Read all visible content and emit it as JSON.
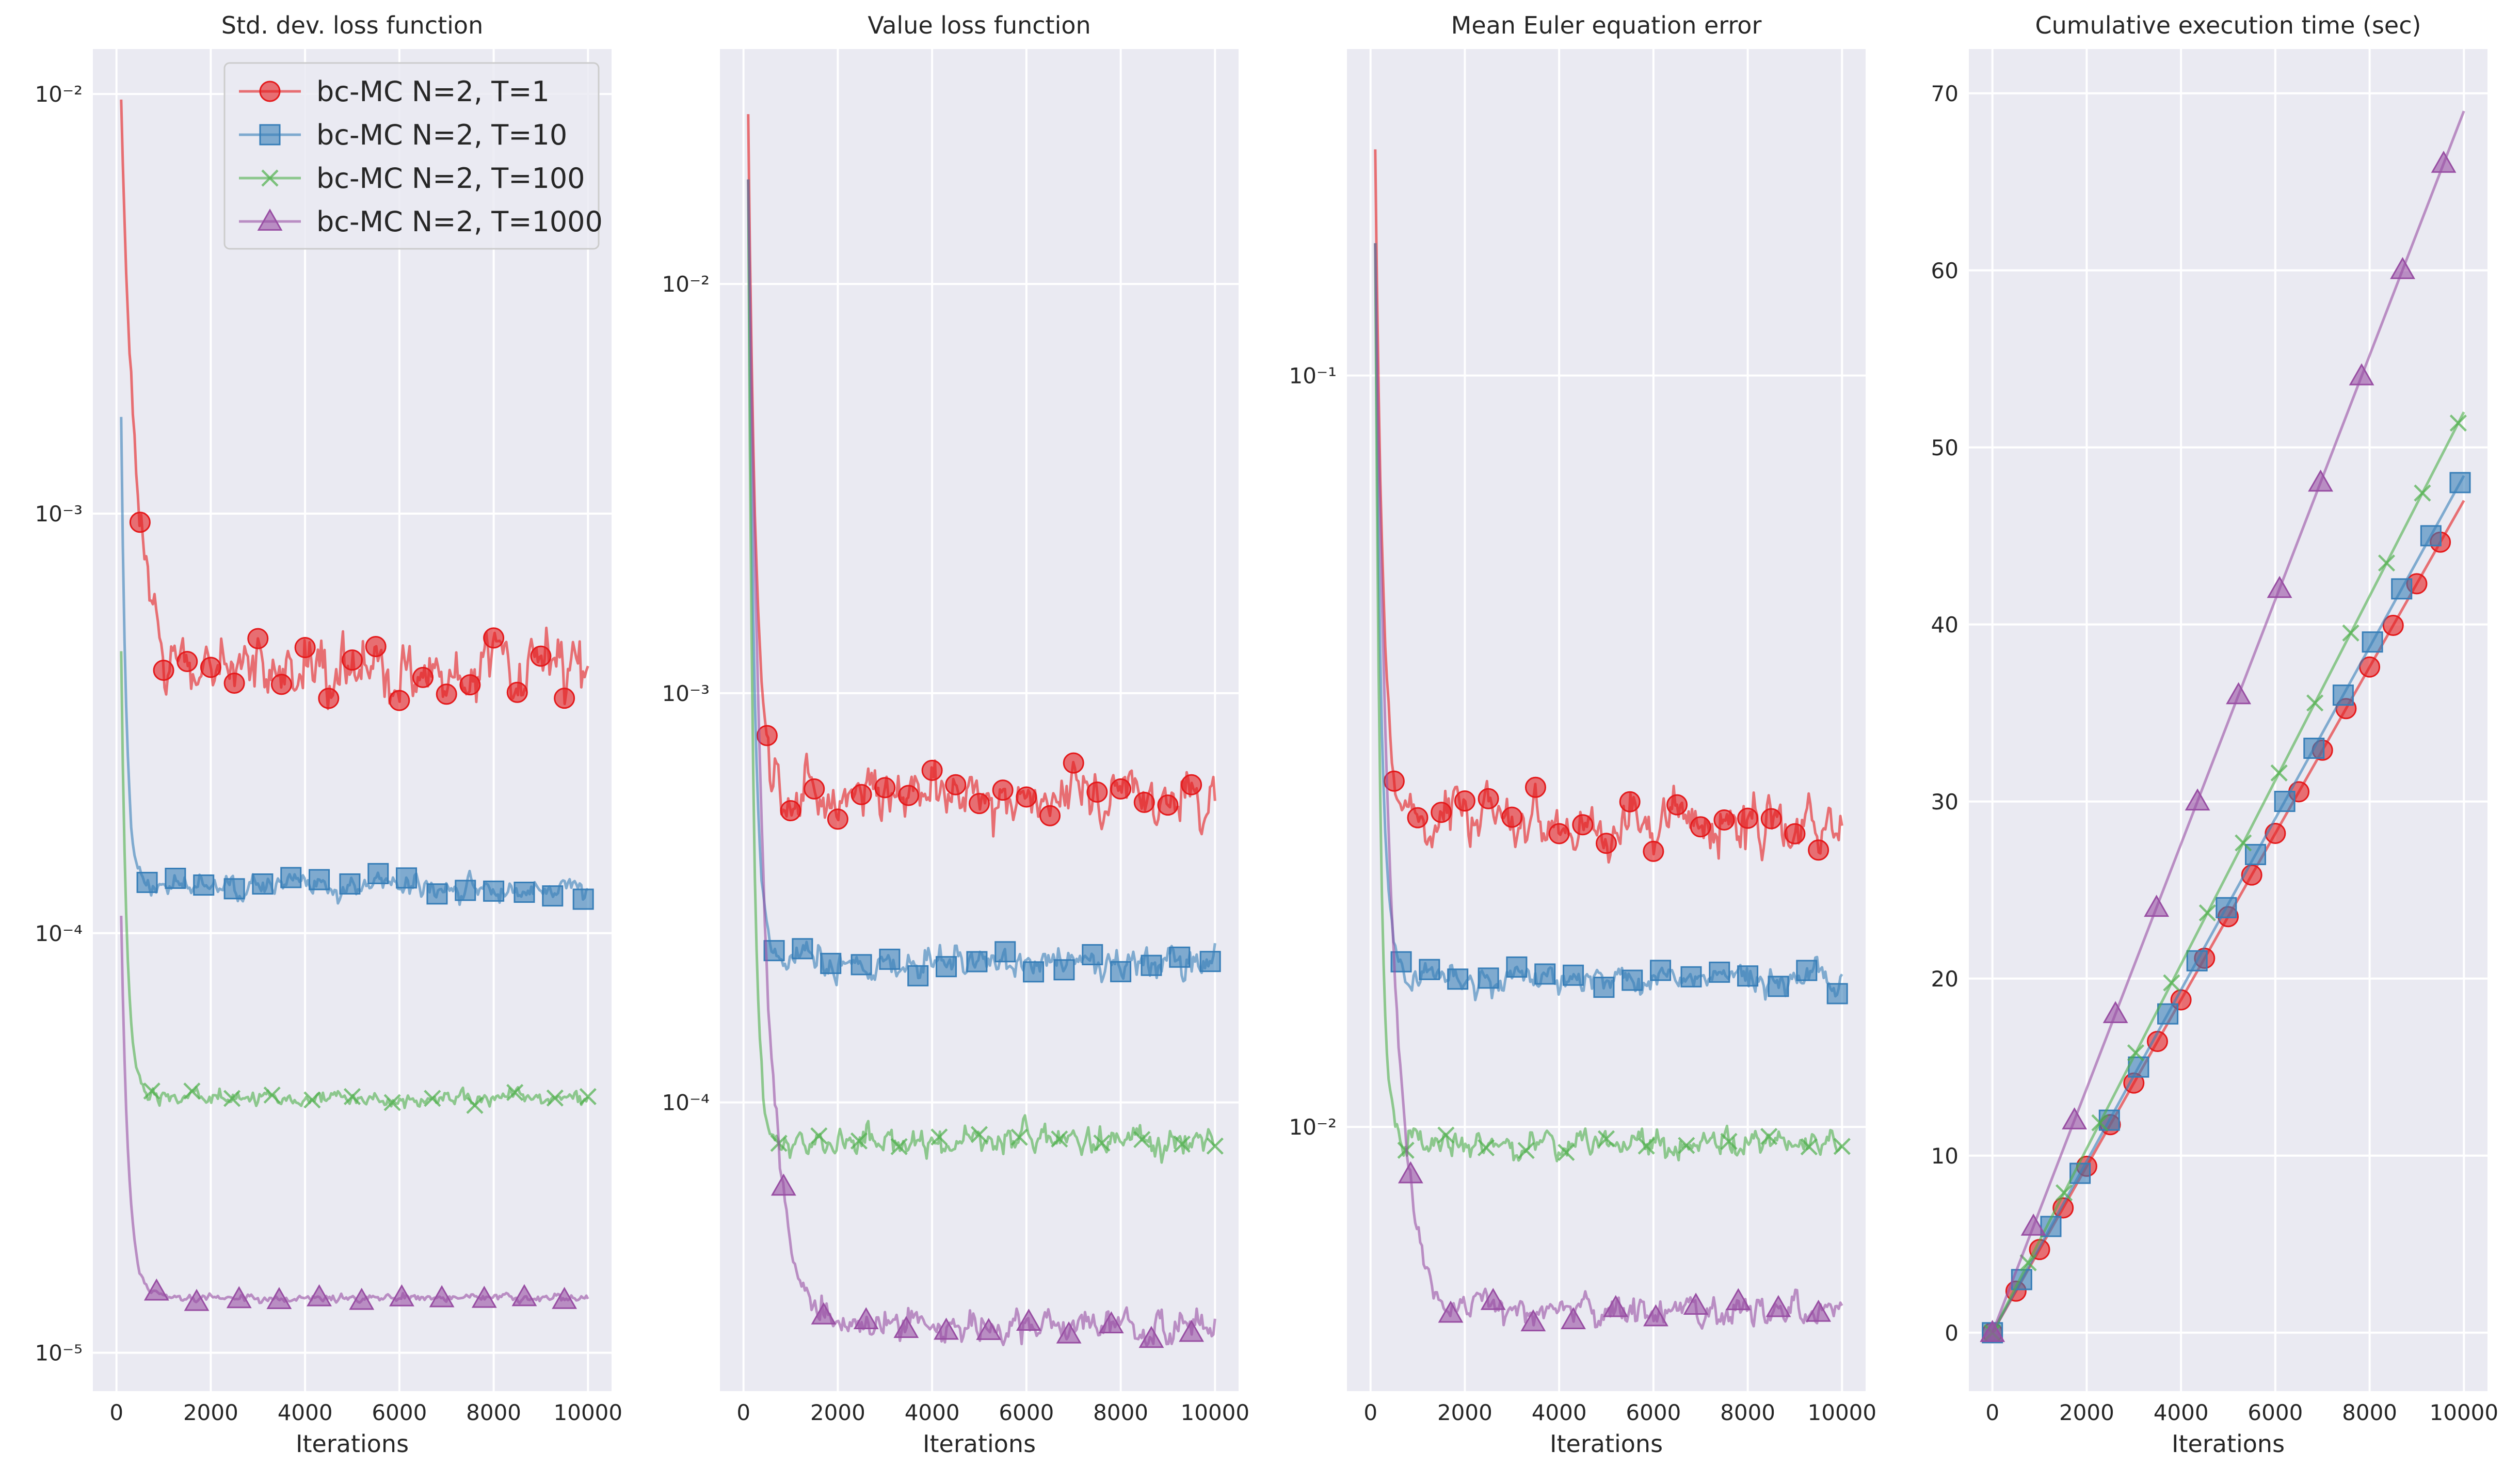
{
  "chart_data": [
    {
      "type": "line",
      "title": "Std. dev. loss function",
      "xlabel": "Iterations",
      "xscale": "linear",
      "yscale": "log",
      "xlim": [
        -500,
        10500
      ],
      "ylim": [
        8.1e-06,
        0.0128
      ],
      "xticks": [
        0,
        2000,
        4000,
        6000,
        8000,
        10000
      ],
      "xtick_labels": [
        "0",
        "2000",
        "4000",
        "6000",
        "8000",
        "10000"
      ],
      "yticks": [
        1e-05,
        0.0001,
        0.001,
        0.01
      ],
      "ytick_labels": [
        "10⁻⁵",
        "10⁻⁴",
        "10⁻³",
        "10⁻²"
      ],
      "series": [
        {
          "name": "bc-MC N=2, T=1",
          "color": "#e41a1c",
          "marker": "circle",
          "start": 0.0097,
          "level": 0.00043,
          "noise": 0.17,
          "decay": 300,
          "markers_x": [
            500,
            1000,
            1500,
            2000,
            2500,
            3000,
            3500,
            4000,
            4500,
            5000,
            5500,
            6000,
            6500,
            7000,
            7500,
            8000,
            8500,
            9000,
            9500
          ]
        },
        {
          "name": "bc-MC N=2, T=10",
          "color": "#377eb8",
          "marker": "square",
          "start": 0.0017,
          "level": 0.000128,
          "noise": 0.06,
          "decay": 110,
          "markers_x": [
            650,
            1250,
            1850,
            2500,
            3100,
            3700,
            4300,
            4950,
            5550,
            6150,
            6800,
            7400,
            8000,
            8650,
            9250,
            9900
          ]
        },
        {
          "name": "bc-MC N=2, T=100",
          "color": "#4daf4a",
          "marker": "x",
          "start": 0.00047,
          "level": 4.05e-05,
          "noise": 0.04,
          "decay": 120,
          "markers_x": [
            750,
            1600,
            2450,
            3300,
            4150,
            5000,
            5850,
            6700,
            7600,
            8450,
            9300,
            10000
          ]
        },
        {
          "name": "bc-MC N=2, T=1000",
          "color": "#984ea3",
          "marker": "triangle",
          "start": 0.00011,
          "level": 1.35e-05,
          "noise": 0.02,
          "decay": 150,
          "markers_x": [
            850,
            1700,
            2600,
            3450,
            4300,
            5200,
            6050,
            6900,
            7800,
            8650,
            9500
          ]
        }
      ],
      "legend": {
        "location": "top-right"
      }
    },
    {
      "type": "line",
      "title": "Value loss function",
      "xlabel": "Iterations",
      "xscale": "linear",
      "yscale": "log",
      "xlim": [
        -500,
        10500
      ],
      "ylim": [
        1.97e-05,
        0.0375
      ],
      "xticks": [
        0,
        2000,
        4000,
        6000,
        8000,
        10000
      ],
      "xtick_labels": [
        "0",
        "2000",
        "4000",
        "6000",
        "8000",
        "10000"
      ],
      "yticks": [
        0.0001,
        0.001,
        0.01
      ],
      "ytick_labels": [
        "10⁻⁴",
        "10⁻³",
        "10⁻²"
      ],
      "series": [
        {
          "name": "bc-MC N=2, T=1",
          "color": "#e41a1c",
          "marker": "circle",
          "start": 0.026,
          "level": 0.00056,
          "noise": 0.15,
          "decay": 160,
          "markers_x": [
            500,
            1000,
            1500,
            2000,
            2500,
            3000,
            3500,
            4000,
            4500,
            5000,
            5500,
            6000,
            6500,
            7000,
            7500,
            8000,
            8500,
            9000,
            9500
          ]
        },
        {
          "name": "bc-MC N=2, T=10",
          "color": "#377eb8",
          "marker": "square",
          "start": 0.018,
          "level": 0.00022,
          "noise": 0.08,
          "decay": 130,
          "markers_x": [
            650,
            1250,
            1850,
            2500,
            3100,
            3700,
            4300,
            4950,
            5550,
            6150,
            6800,
            7400,
            8000,
            8650,
            9250,
            9900
          ]
        },
        {
          "name": "bc-MC N=2, T=100",
          "color": "#4daf4a",
          "marker": "x",
          "start": 0.018,
          "level": 8e-05,
          "noise": 0.08,
          "decay": 110,
          "markers_x": [
            750,
            1600,
            2450,
            3300,
            4150,
            5000,
            5850,
            6700,
            7600,
            8450,
            9300,
            10000
          ]
        },
        {
          "name": "bc-MC N=2, T=1000",
          "color": "#984ea3",
          "marker": "triangle",
          "start": 0.018,
          "level": 2.85e-05,
          "noise": 0.09,
          "decay": 350,
          "markers_x": [
            850,
            1700,
            2600,
            3450,
            4300,
            5200,
            6050,
            6900,
            7800,
            8650,
            9500
          ]
        }
      ]
    },
    {
      "type": "line",
      "title": "Mean Euler equation error",
      "xlabel": "Iterations",
      "xscale": "linear",
      "yscale": "log",
      "xlim": [
        -500,
        10500
      ],
      "ylim": [
        0.00445,
        0.272
      ],
      "xticks": [
        0,
        2000,
        4000,
        6000,
        8000,
        10000
      ],
      "xtick_labels": [
        "0",
        "2000",
        "4000",
        "6000",
        "8000",
        "10000"
      ],
      "yticks": [
        0.01,
        0.1
      ],
      "ytick_labels": [
        "10⁻²",
        "10⁻¹"
      ],
      "series": [
        {
          "name": "bc-MC N=2, T=1",
          "color": "#e41a1c",
          "marker": "circle",
          "start": 0.2,
          "level": 0.0255,
          "noise": 0.08,
          "decay": 160,
          "markers_x": [
            500,
            1000,
            1500,
            2000,
            2500,
            3000,
            3500,
            4000,
            4500,
            5000,
            5500,
            6000,
            6500,
            7000,
            7500,
            8000,
            8500,
            9000,
            9500
          ]
        },
        {
          "name": "bc-MC N=2, T=10",
          "color": "#377eb8",
          "marker": "square",
          "start": 0.15,
          "level": 0.0158,
          "noise": 0.04,
          "decay": 130,
          "markers_x": [
            650,
            1250,
            1850,
            2500,
            3100,
            3700,
            4300,
            4950,
            5550,
            6150,
            6800,
            7400,
            8000,
            8650,
            9250,
            9900
          ]
        },
        {
          "name": "bc-MC N=2, T=100",
          "color": "#4daf4a",
          "marker": "x",
          "start": 0.15,
          "level": 0.0095,
          "noise": 0.04,
          "decay": 110,
          "markers_x": [
            750,
            1600,
            2450,
            3300,
            4150,
            5000,
            5850,
            6700,
            7600,
            8450,
            9300,
            10000
          ]
        },
        {
          "name": "bc-MC N=2, T=1000",
          "color": "#984ea3",
          "marker": "triangle",
          "start": 0.15,
          "level": 0.0057,
          "noise": 0.045,
          "decay": 350,
          "markers_x": [
            850,
            1700,
            2600,
            3450,
            4300,
            5200,
            6050,
            6900,
            7800,
            8650,
            9500
          ]
        }
      ]
    },
    {
      "type": "line",
      "title": "Cumulative execution time (sec)",
      "xlabel": "Iterations",
      "xscale": "linear",
      "yscale": "linear",
      "xlim": [
        -500,
        10500
      ],
      "ylim": [
        -3.3,
        72.5
      ],
      "xticks": [
        0,
        2000,
        4000,
        6000,
        8000,
        10000
      ],
      "xtick_labels": [
        "0",
        "2000",
        "4000",
        "6000",
        "8000",
        "10000"
      ],
      "yticks": [
        0,
        10,
        20,
        30,
        40,
        50,
        60,
        70
      ],
      "ytick_labels": [
        "0",
        "10",
        "20",
        "30",
        "40",
        "50",
        "60",
        "70"
      ],
      "series": [
        {
          "name": "bc-MC N=2, T=1",
          "color": "#e41a1c",
          "marker": "circle",
          "x": [
            0,
            10000
          ],
          "y": [
            0,
            47
          ],
          "markers_x": [
            0,
            500,
            1000,
            1500,
            2000,
            2500,
            3000,
            3500,
            4000,
            4500,
            5000,
            5500,
            6000,
            6500,
            7000,
            7500,
            8000,
            8500,
            9000,
            9500
          ]
        },
        {
          "name": "bc-MC N=2, T=10",
          "color": "#377eb8",
          "marker": "square",
          "x": [
            0,
            10000
          ],
          "y": [
            0,
            48.4
          ],
          "markers_x": [
            0,
            620,
            1240,
            1860,
            2480,
            3100,
            3720,
            4340,
            4960,
            5580,
            6200,
            6820,
            7440,
            8060,
            8680,
            9300,
            9920
          ]
        },
        {
          "name": "bc-MC N=2, T=100",
          "color": "#4daf4a",
          "marker": "x",
          "x": [
            0,
            10000
          ],
          "y": [
            0,
            52
          ],
          "markers_x": [
            0,
            760,
            1520,
            2280,
            3040,
            3800,
            4560,
            5320,
            6080,
            6840,
            7600,
            8360,
            9120,
            9880
          ]
        },
        {
          "name": "bc-MC N=2, T=1000",
          "color": "#984ea3",
          "marker": "triangle",
          "x": [
            0,
            10000
          ],
          "y": [
            0,
            69
          ],
          "markers_x": [
            0,
            870,
            1740,
            2610,
            3480,
            4350,
            5220,
            6090,
            6960,
            7830,
            8700,
            9570
          ]
        }
      ]
    }
  ]
}
